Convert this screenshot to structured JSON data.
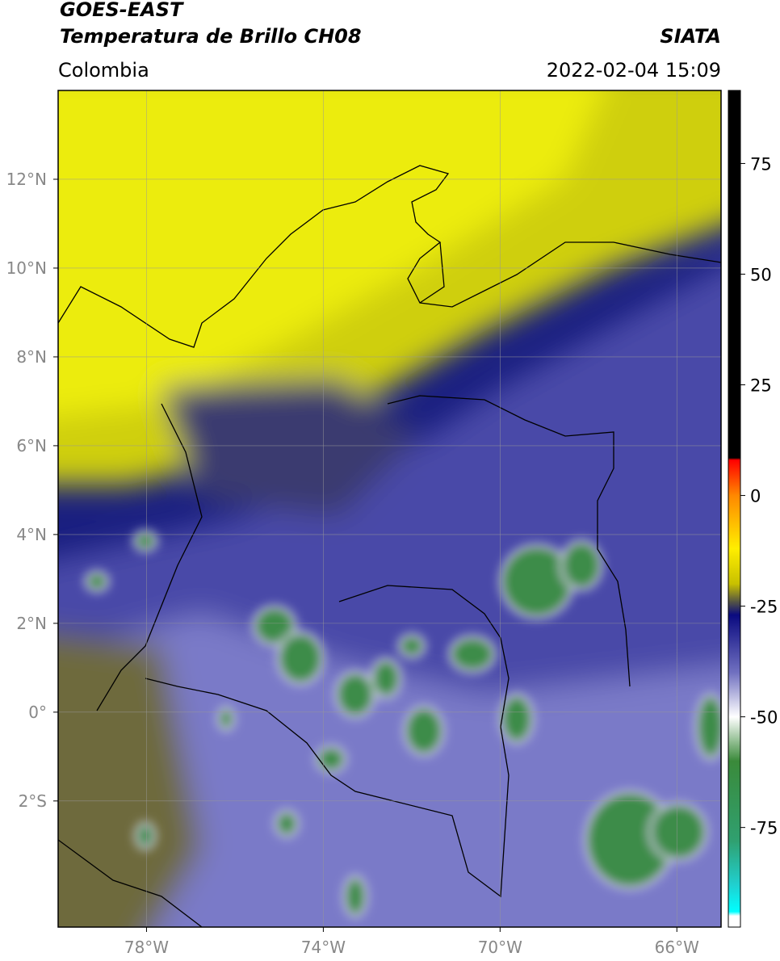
{
  "header": {
    "title": "GOES-EAST",
    "subtitle": "Temperatura de Brillo CH08",
    "source": "SIATA",
    "region": "Colombia",
    "datetime": "2022-02-04 15:09"
  },
  "map": {
    "xlim": [
      -80,
      -65
    ],
    "ylim": [
      -4.84,
      14
    ],
    "grid": true,
    "xticks": [
      {
        "value": -78,
        "label": "78°W"
      },
      {
        "value": -74,
        "label": "74°W"
      },
      {
        "value": -70,
        "label": "70°W"
      },
      {
        "value": -66,
        "label": "66°W"
      }
    ],
    "yticks": [
      {
        "value": 12,
        "label": "12°N"
      },
      {
        "value": 10,
        "label": "10°N"
      },
      {
        "value": 8,
        "label": "8°N"
      },
      {
        "value": 6,
        "label": "6°N"
      },
      {
        "value": 4,
        "label": "4°N"
      },
      {
        "value": 2,
        "label": "2°N"
      },
      {
        "value": 0,
        "label": "0°"
      },
      {
        "value": -2,
        "label": "2°S"
      }
    ]
  },
  "colorbar": {
    "clim": [
      -97.5,
      91.5
    ],
    "ticks": [
      75,
      50,
      25,
      0,
      -25,
      -50,
      -75
    ],
    "colorscale": [
      [
        91.5,
        "#000000"
      ],
      [
        8.5,
        "#000000"
      ],
      [
        8,
        "#ff0000"
      ],
      [
        0,
        "#ff8800"
      ],
      [
        -12,
        "#ffee00"
      ],
      [
        -20,
        "#c8c000"
      ],
      [
        -24,
        "#555544"
      ],
      [
        -27,
        "#0a0a80"
      ],
      [
        -40,
        "#7070c0"
      ],
      [
        -50,
        "#ffffff"
      ],
      [
        -60,
        "#3a8a3a"
      ],
      [
        -78,
        "#30a070"
      ],
      [
        -88,
        "#20d0d0"
      ],
      [
        -94,
        "#00ffff"
      ],
      [
        -95,
        "#ffffff"
      ],
      [
        -97.5,
        "#ffffff"
      ]
    ]
  }
}
